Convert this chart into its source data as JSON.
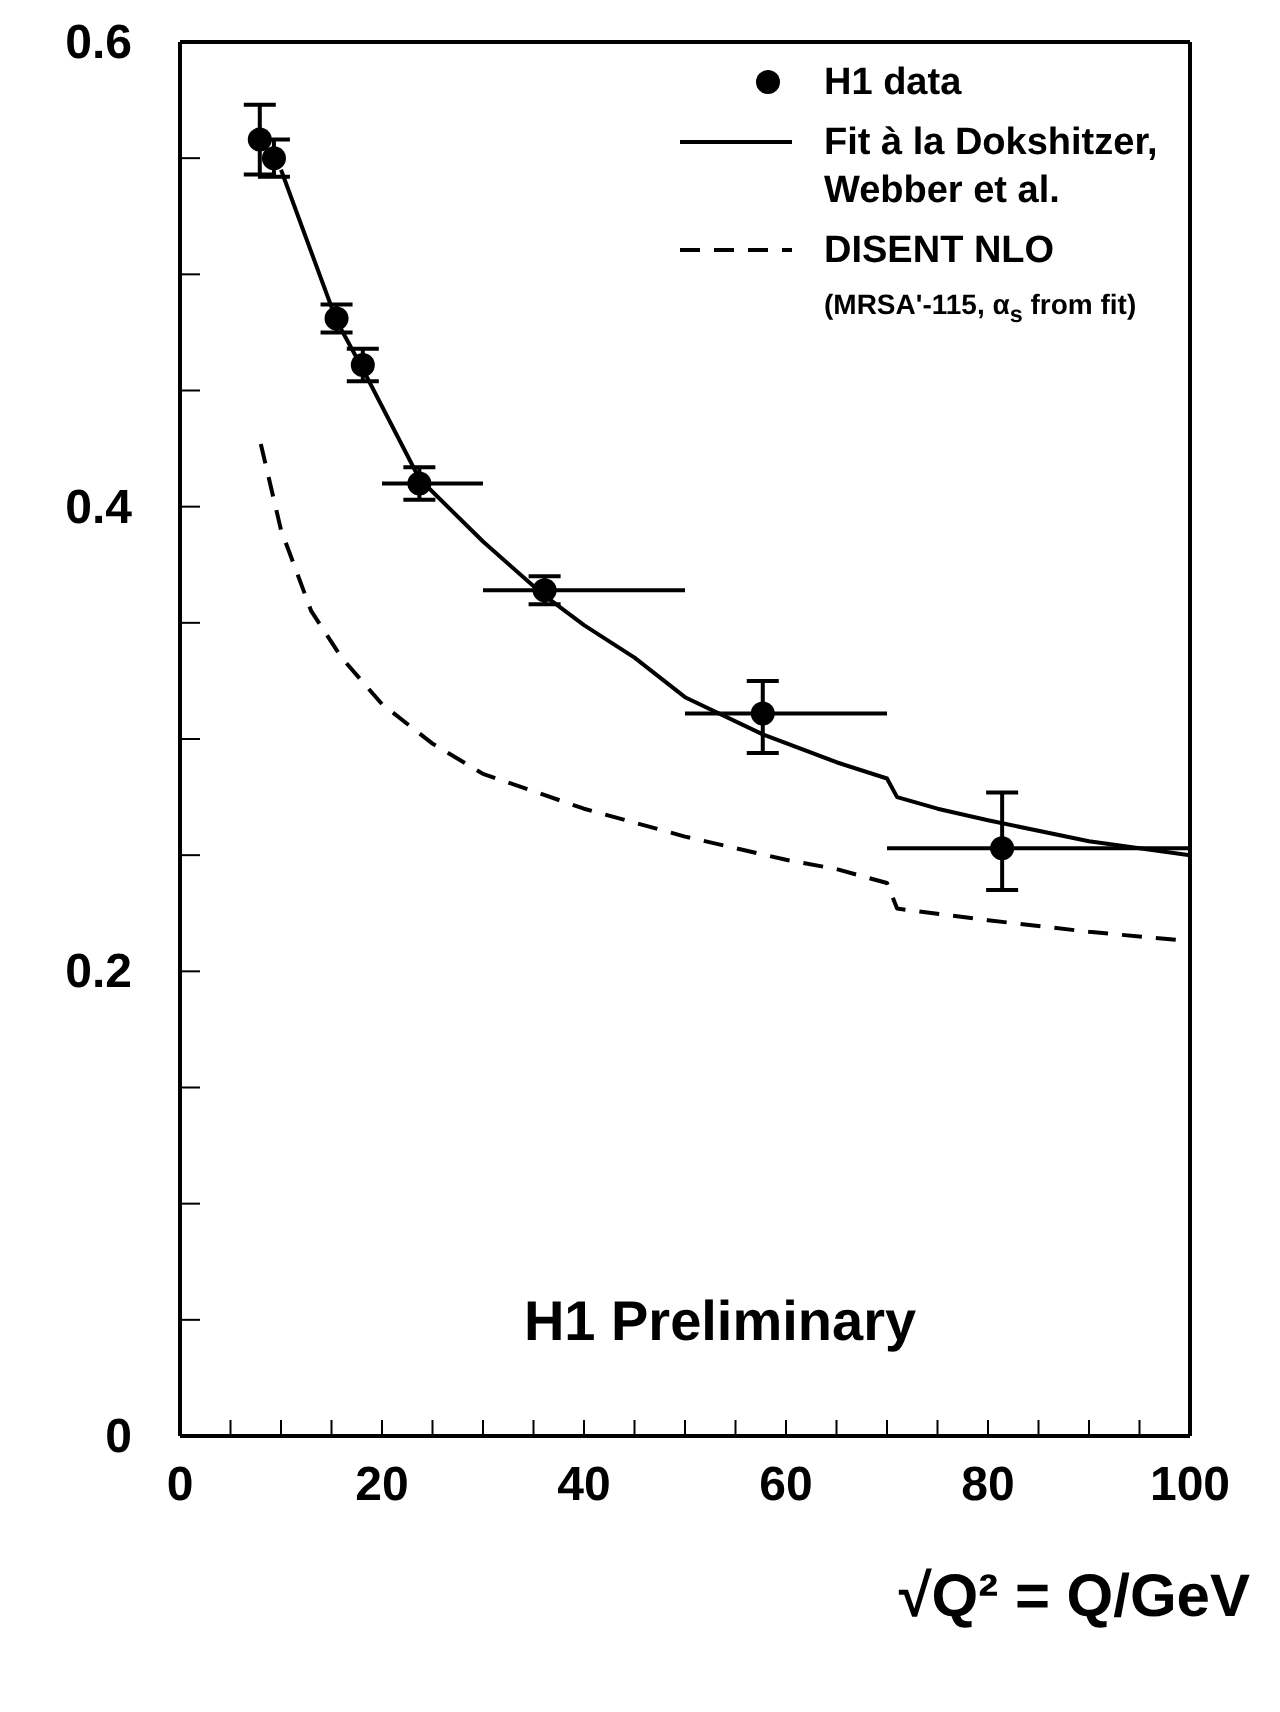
{
  "chart_data": {
    "type": "scatter",
    "xlabel": "√Q² = Q/GeV",
    "xlim": [
      0,
      100
    ],
    "xticks": [
      0,
      {
        "value": 5,
        "label": null
      },
      {
        "value": 10,
        "label": null
      },
      {
        "value": 15,
        "label": null
      },
      20,
      {
        "value": 25,
        "label": null
      },
      {
        "value": 30,
        "label": null
      },
      {
        "value": 35,
        "label": null
      },
      40,
      {
        "value": 45,
        "label": null
      },
      {
        "value": 50,
        "label": null
      },
      {
        "value": 55,
        "label": null
      },
      60,
      {
        "value": 65,
        "label": null
      },
      {
        "value": 70,
        "label": null
      },
      {
        "value": 75,
        "label": null
      },
      80,
      {
        "value": 85,
        "label": null
      },
      {
        "value": 90,
        "label": null
      },
      {
        "value": 95,
        "label": null
      },
      100
    ],
    "ylim": [
      0,
      0.6
    ],
    "yticks": [
      0,
      {
        "value": 0.05,
        "label": null
      },
      {
        "value": 0.1,
        "label": null
      },
      {
        "value": 0.15,
        "label": null
      },
      0.2,
      {
        "value": 0.25,
        "label": null
      },
      {
        "value": 0.3,
        "label": null
      },
      {
        "value": 0.35,
        "label": null
      },
      0.4,
      {
        "value": 0.45,
        "label": null
      },
      {
        "value": 0.5,
        "label": null
      },
      {
        "value": 0.55,
        "label": null
      },
      0.6
    ],
    "legend": "top right",
    "grid": false,
    "series": [
      {
        "name": "H1 data",
        "color": "#000000",
        "marker": "circle",
        "x": [
          7.9,
          9.3,
          15.5,
          18.1,
          23.7,
          36.1,
          57.7,
          81.4
        ],
        "values": [
          0.558,
          0.55,
          0.481,
          0.461,
          0.41,
          0.364,
          0.311,
          0.253
        ],
        "errors": [
          [
            0.543,
            0.573
          ],
          [
            0.542,
            0.558
          ],
          [
            0.475,
            0.487
          ],
          [
            0.454,
            0.468
          ],
          [
            0.403,
            0.417
          ],
          [
            0.358,
            0.37
          ],
          [
            0.294,
            0.325
          ],
          [
            0.235,
            0.277
          ]
        ],
        "xerrors": [
          null,
          null,
          null,
          null,
          [
            20,
            30
          ],
          [
            30,
            50
          ],
          [
            50,
            70
          ],
          [
            70,
            100
          ]
        ]
      },
      {
        "name": "Fit à la Dokshitzer, Webber et al.",
        "type": "line",
        "color": "#000000",
        "line_style": "solid",
        "marker": "none",
        "x": [
          10,
          15.5,
          18,
          23.7,
          30,
          36,
          40,
          45,
          50,
          57.7,
          65,
          70,
          71,
          75,
          80,
          90,
          100
        ],
        "values": [
          0.545,
          0.48,
          0.46,
          0.412,
          0.385,
          0.362,
          0.349,
          0.335,
          0.318,
          0.302,
          0.29,
          0.283,
          0.275,
          0.27,
          0.265,
          0.256,
          0.25
        ]
      },
      {
        "name": "DISENT NLO",
        "type": "line",
        "color": "#000000",
        "line_style": "dashed",
        "marker": "none",
        "x": [
          8,
          10,
          13,
          16,
          20,
          25,
          30,
          40,
          50,
          55,
          60,
          65,
          70,
          71,
          80,
          90,
          100
        ],
        "values": [
          0.427,
          0.39,
          0.355,
          0.335,
          0.315,
          0.298,
          0.285,
          0.27,
          0.258,
          0.253,
          0.248,
          0.244,
          0.238,
          0.227,
          0.222,
          0.217,
          0.213
        ]
      }
    ],
    "annotations": [
      "(MRSA'-115, α$_{s}$ from fit)",
      "H1 Preliminary"
    ]
  }
}
